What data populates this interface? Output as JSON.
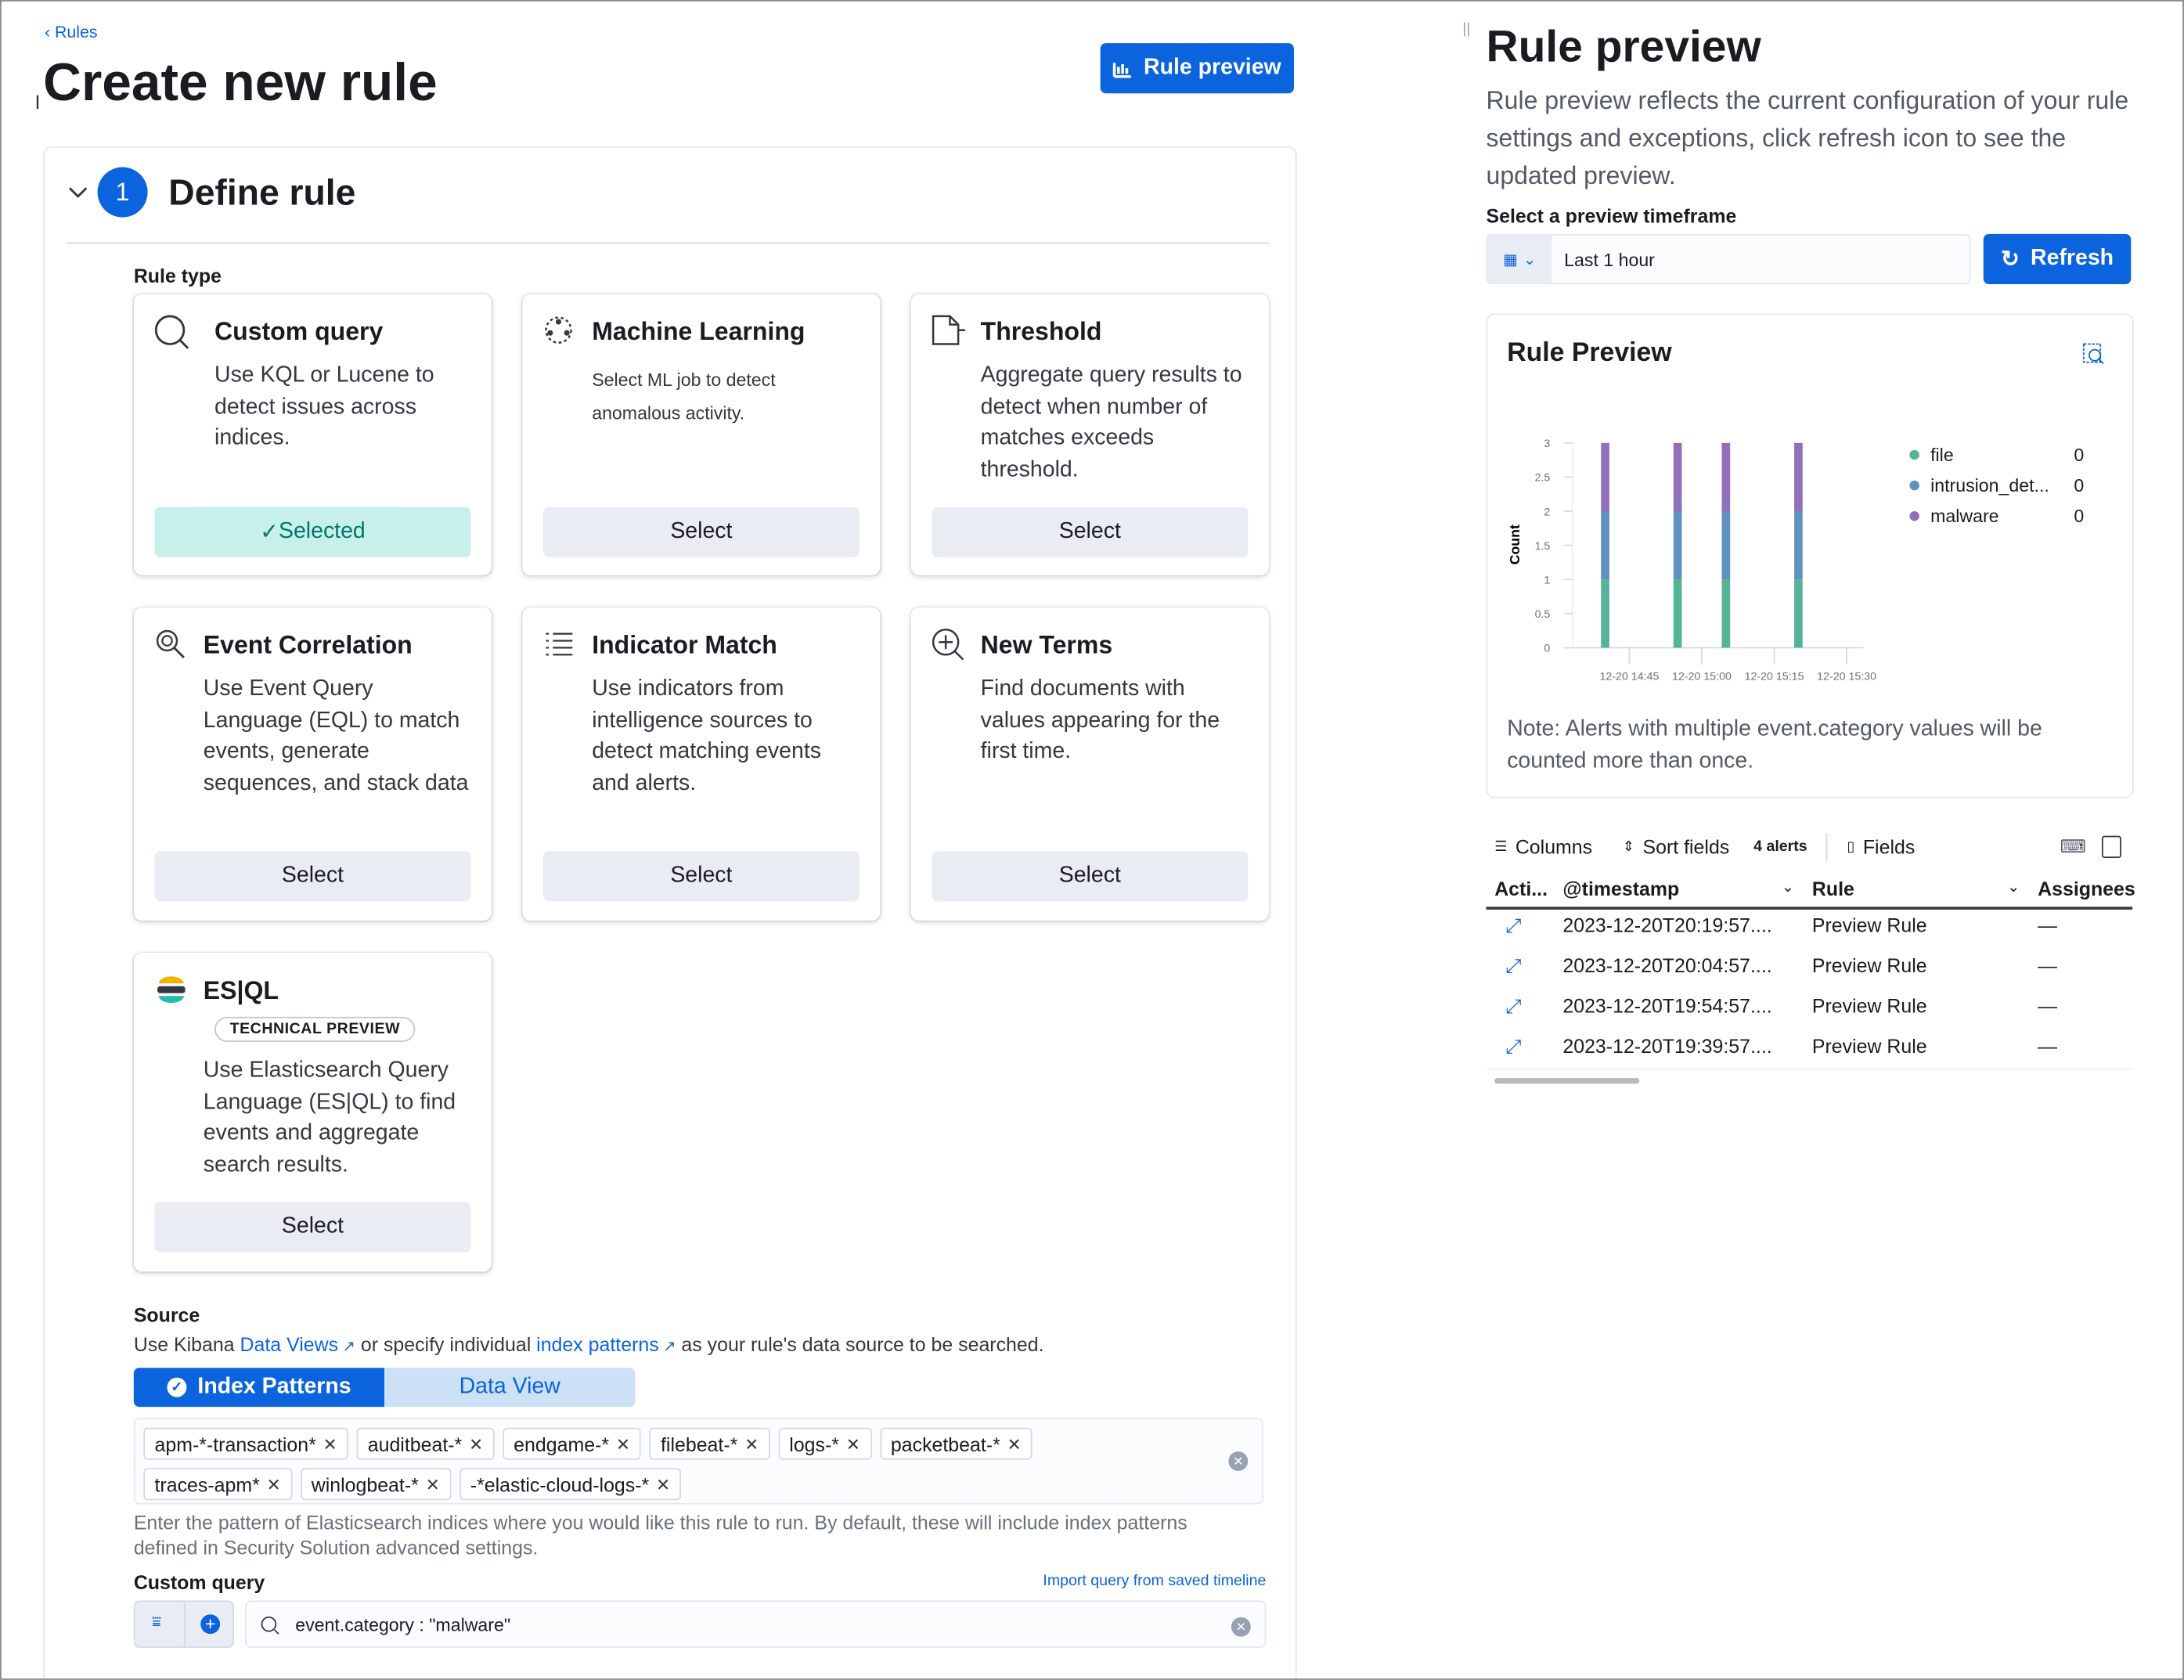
{
  "breadcrumb": {
    "back_label": "Rules"
  },
  "page": {
    "title": "Create new rule",
    "preview_button": "Rule preview"
  },
  "step": {
    "number": "1",
    "title": "Define rule"
  },
  "rule_type": {
    "label": "Rule type",
    "cards": [
      {
        "title": "Custom query",
        "description": "Use KQL or Lucene to detect issues across indices.",
        "button": "Selected",
        "selected": true,
        "icon": "search-icon"
      },
      {
        "title": "Machine Learning",
        "description": "Select ML job to detect anomalous activity.",
        "button": "Select",
        "icon": "machine-learning-icon"
      },
      {
        "title": "Threshold",
        "description": "Aggregate query results to detect when number of matches exceeds threshold.",
        "button": "Select",
        "icon": "threshold-icon"
      },
      {
        "title": "Event Correlation",
        "description": "Use Event Query Language (EQL) to match events, generate sequences, and stack data",
        "button": "Select",
        "icon": "event-correlation-icon"
      },
      {
        "title": "Indicator Match",
        "description": "Use indicators from intelligence sources to detect matching events and alerts.",
        "button": "Select",
        "icon": "list-icon"
      },
      {
        "title": "New Terms",
        "description": "Find documents with values appearing for the first time.",
        "button": "Select",
        "icon": "zoom-in-icon"
      },
      {
        "title": "ES|QL",
        "badge": "TECHNICAL PREVIEW",
        "description": "Use Elasticsearch Query Language (ES|QL) to find events and aggregate search results.",
        "button": "Select",
        "icon": "esql-logo-icon"
      }
    ]
  },
  "source": {
    "label": "Source",
    "help_prefix": "Use Kibana ",
    "data_views_link": "Data Views",
    "help_middle": " or specify individual ",
    "index_patterns_link": "index patterns",
    "help_suffix": " as your rule's data source to be searched.",
    "tabs": [
      {
        "label": "Index Patterns",
        "active": true
      },
      {
        "label": "Data View",
        "active": false
      }
    ],
    "patterns": [
      "apm-*-transaction*",
      "auditbeat-*",
      "endgame-*",
      "filebeat-*",
      "logs-*",
      "packetbeat-*",
      "traces-apm*",
      "winlogbeat-*",
      "-*elastic-cloud-logs-*"
    ],
    "help_text": "Enter the pattern of Elasticsearch indices where you would like this rule to run. By default, these will include index patterns defined in Security Solution advanced settings."
  },
  "custom_query": {
    "label": "Custom query",
    "import_link": "Import query from saved timeline",
    "value": "event.category : \"malware\""
  },
  "preview": {
    "title": "Rule preview",
    "description": "Rule preview reflects the current configuration of your rule settings and exceptions, click refresh icon to see the updated preview.",
    "timeframe_label": "Select a preview timeframe",
    "timeframe_value": "Last 1 hour",
    "refresh_label": "Refresh",
    "panel_title": "Rule Preview",
    "note": "Note: Alerts with multiple event.category values will be counted more than once."
  },
  "chart_data": {
    "type": "bar",
    "stacked": true,
    "ylabel": "Count",
    "ylim": [
      0,
      3
    ],
    "yticks": [
      "0",
      "0.5",
      "1",
      "1.5",
      "2",
      "2.5",
      "3"
    ],
    "xticks": [
      "12-20 14:45",
      "12-20 15:00",
      "12-20 15:15",
      "12-20 15:30"
    ],
    "x": [
      "12-20 14:40",
      "12-20 14:55",
      "12-20 15:05",
      "12-20 15:20"
    ],
    "series": [
      {
        "name": "file",
        "values": [
          1,
          1,
          1,
          1
        ],
        "color": "#54b399",
        "legend_value": "0"
      },
      {
        "name": "intrusion_det...",
        "values": [
          1,
          1,
          1,
          1
        ],
        "color": "#6092c0",
        "legend_value": "0"
      },
      {
        "name": "malware",
        "values": [
          1,
          1,
          1,
          1
        ],
        "color": "#9170b8",
        "legend_value": "0"
      }
    ],
    "legend": "right"
  },
  "table": {
    "toolbar": {
      "columns": "Columns",
      "sort": "Sort fields",
      "count": "4 alerts",
      "fields": "Fields"
    },
    "headers": [
      "Acti...",
      "@timestamp",
      "Rule",
      "Assignees"
    ],
    "rows": [
      {
        "timestamp": "2023-12-20T20:19:57....",
        "rule": "Preview Rule",
        "assignees": "—"
      },
      {
        "timestamp": "2023-12-20T20:04:57....",
        "rule": "Preview Rule",
        "assignees": "—"
      },
      {
        "timestamp": "2023-12-20T19:54:57....",
        "rule": "Preview Rule",
        "assignees": "—"
      },
      {
        "timestamp": "2023-12-20T19:39:57....",
        "rule": "Preview Rule",
        "assignees": "—"
      }
    ]
  },
  "colors": {
    "primary": "#0b64dd",
    "selected_bg": "#c8f0ea",
    "selected_text": "#00776c"
  }
}
